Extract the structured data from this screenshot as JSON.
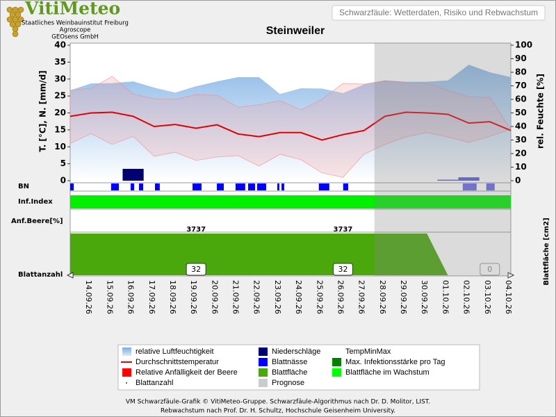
{
  "header": {
    "logo": "VitiMeteo",
    "lines": [
      "Staatliches Weinbauinstitut Freiburg",
      "Agroscope",
      "GEOsens GmbH"
    ],
    "page_title": "Schwarzfäule: Wetterdaten, Risiko und Rebwachstum"
  },
  "chart_data": {
    "type": "line",
    "title": "Steinweiler",
    "categories": [
      null,
      "14.09.26",
      "15.09.26",
      "16.09.26",
      "17.09.26",
      "18.09.26",
      "19.09.26",
      "20.09.26",
      "21.09.26",
      "22.09.26",
      "23.09.26",
      "24.09.26",
      "25.09.26",
      "26.09.26",
      "27.09.26",
      "28.09.26",
      "29.09.26",
      "30.09.26",
      "01.10.26",
      "02.10.26",
      "03.10.26",
      "04.10.26"
    ],
    "ylabel": "T. [°C], N. [mm/d]",
    "y2label": "rel. Feuchte [%]",
    "ylim": [
      0,
      40
    ],
    "yticks": [
      0,
      5,
      10,
      15,
      20,
      25,
      30,
      35,
      40
    ],
    "y2lim": [
      0,
      100
    ],
    "y2ticks": [
      0,
      10,
      20,
      30,
      40,
      50,
      60,
      70,
      80,
      90,
      100
    ],
    "series": [
      {
        "name": "relative Luftfeuchtigkeit",
        "color": "#8fbbe8",
        "axis": "y2",
        "values": [
          66.7,
          71.8,
          72,
          73.3,
          68.7,
          65,
          69.7,
          73.3,
          76.4,
          76.4,
          64,
          68.2,
          68,
          64.6,
          71,
          74,
          73,
          73,
          74,
          85.6,
          80,
          76.4
        ]
      },
      {
        "name": "TempMinMax",
        "color": "#f08a8a",
        "values": [
          26.7,
          27.3,
          30.8,
          25.6,
          24.2,
          24,
          25.4,
          25.2,
          21.7,
          22.4,
          23.6,
          20.9,
          24,
          28.7,
          28.5,
          29.5,
          28.9,
          28.7,
          26.7,
          24.8,
          24.6,
          15.2
        ],
        "min_values": [
          11,
          13.9,
          10.7,
          13.1,
          7.2,
          8.4,
          6,
          7,
          7.4,
          4.3,
          7.8,
          6.2,
          2.3,
          1,
          7.8,
          10.7,
          12.9,
          14.2,
          12.9,
          11.3,
          13.1,
          15.2
        ]
      },
      {
        "name": "Durchschnittstemperatur",
        "color": "#e60000",
        "values": [
          19,
          20,
          20.2,
          19,
          16,
          16.6,
          15.5,
          16.5,
          13.8,
          13,
          14.2,
          14.2,
          12,
          13.6,
          14.8,
          19,
          20.2,
          20,
          19.6,
          17,
          17.4,
          14.8
        ]
      },
      {
        "name": "Niederschläge",
        "color": "#000070",
        "forecast_color": "#5a5ae0",
        "values": [
          0,
          0,
          0,
          3.5,
          0,
          0,
          0,
          0,
          0,
          0,
          0,
          0,
          0,
          0,
          0,
          0,
          0,
          0,
          0.3,
          1,
          0,
          0
        ]
      }
    ],
    "bn": {
      "label": "BN",
      "name": "Blattnässe",
      "color": "#0000ff",
      "forecast_color": "#6a6ae8",
      "intervals": [
        [
          0,
          0.17
        ],
        [
          1.95,
          2.32
        ],
        [
          2.88,
          3.05
        ],
        [
          3.28,
          3.48
        ],
        [
          4.04,
          4.27
        ],
        [
          5.83,
          6.26
        ],
        [
          6.99,
          7.32
        ],
        [
          7.88,
          8.34
        ],
        [
          8.48,
          8.81
        ],
        [
          8.91,
          9.34
        ],
        [
          9.87,
          9.97
        ],
        [
          10.07,
          10.2
        ],
        [
          11.85,
          12.35
        ],
        [
          13.01,
          13.25
        ],
        [
          18.71,
          19.37
        ],
        [
          19.83,
          20.23
        ]
      ]
    },
    "infection": {
      "name": "Max. Infektionsstärke pro Tag",
      "color": "#008000"
    },
    "inf_index": {
      "label": "Inf.Index",
      "color": "#00f000"
    },
    "berry": {
      "name": "Relative Anfälligkeit der Beere",
      "label": "Anf.Beere[%]",
      "color": "#ff0000",
      "labels": [
        {
          "x": 6,
          "text": "3737"
        },
        {
          "x": 13,
          "text": "3737"
        }
      ]
    },
    "leaf_area": {
      "name": "Blattfläche",
      "ylabel": "Blattfläche [cm2]",
      "color": "#4aa80c",
      "ylim": [
        0,
        100
      ],
      "values": [
        100,
        100,
        100,
        100,
        100,
        100,
        100,
        100,
        100,
        100,
        100,
        100,
        100,
        100,
        100,
        100,
        100,
        100,
        0,
        0,
        0,
        0
      ]
    },
    "growth": {
      "name": "Blattfläche im Wachstum",
      "color": "#00ff00"
    },
    "leaf_count": {
      "name": "Blattanzahl",
      "label": "Blattanzahl",
      "points": [
        {
          "x": 6,
          "value": 32
        },
        {
          "x": 13,
          "value": 32
        },
        {
          "x": 20,
          "value": 0
        }
      ]
    },
    "forecast": {
      "name": "Prognose",
      "color": "#cccccc",
      "start": 14.5
    }
  },
  "footer": [
    "VM Schwarzfäule-Grafik © VitiMeteo-Gruppe. Schwarzfäule-Algorithmus nach Dr. D. Molitor, LIST.",
    "Rebwachstum nach Prof. Dr. H. Schultz, Hochschule Geisenheim University."
  ]
}
